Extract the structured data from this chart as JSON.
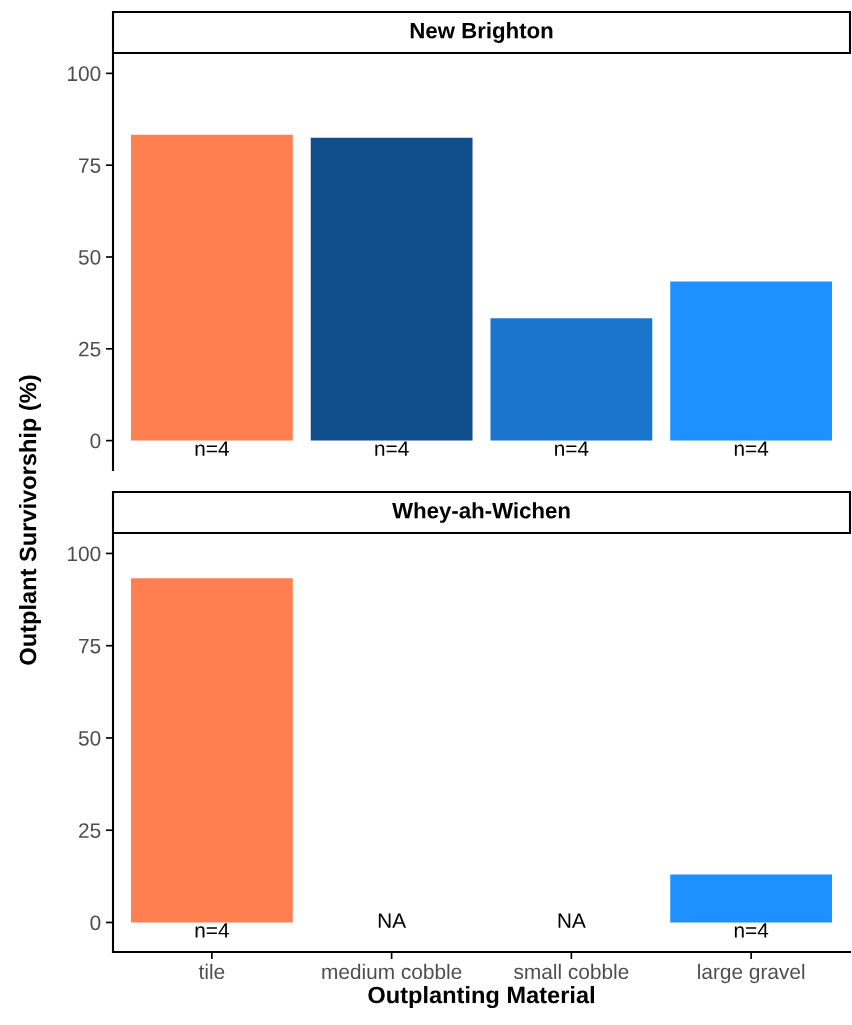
{
  "chart_data": [
    {
      "type": "bar",
      "title": "New Brighton",
      "ylabel": "Outplant Survivorship (%)",
      "categories": [
        "tile",
        "medium cobble",
        "small cobble",
        "large gravel"
      ],
      "values": [
        83.3,
        82.5,
        33.3,
        43.3
      ],
      "colors": [
        "#ff7f50",
        "#104e8b",
        "#1c75cd",
        "#1e90ff"
      ],
      "ylim": [
        -8,
        105
      ],
      "yticks": [
        0,
        25,
        50,
        75,
        100
      ],
      "tick_labels": "y",
      "grid": false,
      "legend": false,
      "annotations": [
        {
          "text": "n=4",
          "x": "tile",
          "y": 0
        },
        {
          "text": "n=4",
          "x": "medium cobble",
          "y": 0
        },
        {
          "text": "n=4",
          "x": "small cobble",
          "y": 0
        },
        {
          "text": "n=4",
          "x": "large gravel",
          "y": 0
        }
      ]
    },
    {
      "type": "bar",
      "title": "Whey-ah-Wichen",
      "xlabel": "Outplanting Material",
      "categories": [
        "tile",
        "medium cobble",
        "small cobble",
        "large gravel"
      ],
      "values": [
        93.3,
        null,
        null,
        13.0
      ],
      "colors": [
        "#ff7f50",
        "#104e8b",
        "#1c75cd",
        "#1e90ff"
      ],
      "ylim": [
        -8,
        105
      ],
      "yticks": [
        0,
        25,
        50,
        75,
        100
      ],
      "grid": false,
      "legend": false,
      "annotations": [
        {
          "text": "n=4",
          "x": "tile",
          "y": 0
        },
        "NA",
        "NA",
        {
          "text": "n=4",
          "x": "large gravel",
          "y": 0
        }
      ]
    }
  ]
}
